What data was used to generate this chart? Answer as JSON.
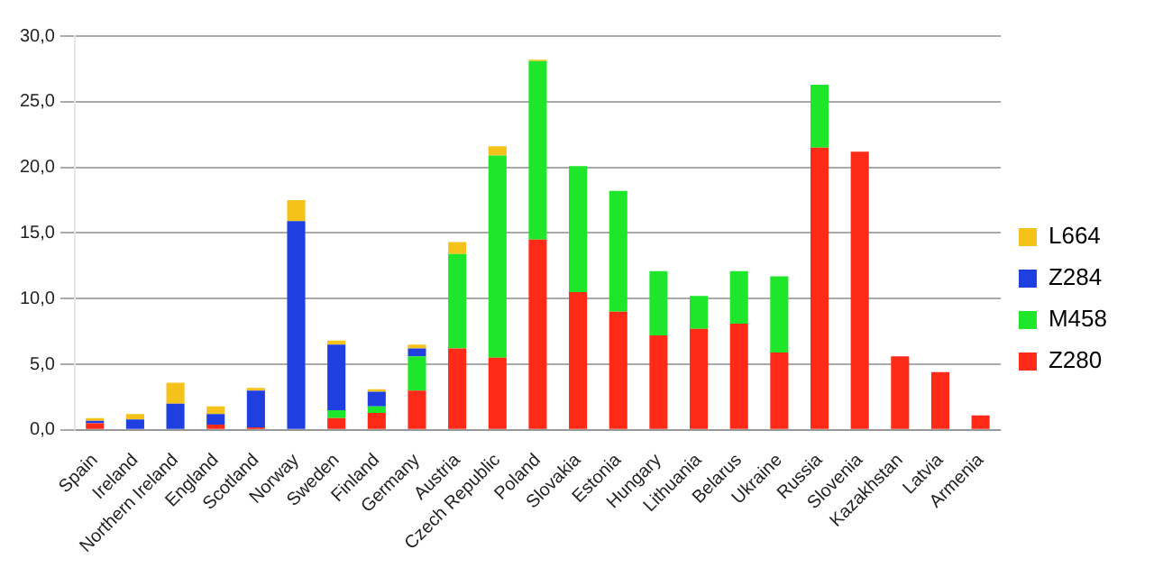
{
  "chart_data": {
    "type": "bar",
    "stacked": true,
    "legend": "right",
    "grid": "y",
    "categories": [
      "Spain",
      "Ireland",
      "Northern Ireland",
      "England",
      "Scotland",
      "Norway",
      "Sweden",
      "Finland",
      "Germany",
      "Austria",
      "Czech Republic",
      "Poland",
      "Slovakia",
      "Estonia",
      "Hungary",
      "Lithuania",
      "Belarus",
      "Ukraine",
      "Russia",
      "Slovenia",
      "Kazakhstan",
      "Latvia",
      "Armenia"
    ],
    "ylim": [
      0,
      30
    ],
    "yticks": [
      {
        "value": 0,
        "label": "0,0"
      },
      {
        "value": 5,
        "label": "5,0"
      },
      {
        "value": 10,
        "label": "10,0"
      },
      {
        "value": 15,
        "label": "15,0"
      },
      {
        "value": 20,
        "label": "20,0"
      },
      {
        "value": 25,
        "label": "25,0"
      },
      {
        "value": 30,
        "label": "30,0"
      }
    ],
    "series": [
      {
        "name": "Z280",
        "color": "#ff2a17",
        "values": [
          0.5,
          0,
          0,
          0.4,
          0.2,
          0,
          0.9,
          1.3,
          3.0,
          6.2,
          5.5,
          14.5,
          10.5,
          9.0,
          7.2,
          7.7,
          8.1,
          5.9,
          21.5,
          21.2,
          5.6,
          4.4,
          1.1
        ]
      },
      {
        "name": "M458",
        "color": "#1ee62a",
        "values": [
          0,
          0,
          0,
          0,
          0,
          0,
          0.6,
          0.5,
          2.6,
          7.2,
          15.4,
          13.6,
          9.6,
          9.2,
          4.9,
          2.5,
          4.0,
          5.8,
          4.8,
          0,
          0,
          0,
          0
        ]
      },
      {
        "name": "Z284",
        "color": "#1f3fe0",
        "values": [
          0.2,
          0.8,
          2.0,
          0.8,
          2.8,
          15.9,
          5.0,
          1.1,
          0.6,
          0,
          0,
          0,
          0,
          0,
          0,
          0,
          0,
          0,
          0,
          0,
          0,
          0,
          0
        ]
      },
      {
        "name": "L664",
        "color": "#f5c21b",
        "values": [
          0.2,
          0.4,
          1.6,
          0.6,
          0.2,
          1.6,
          0.3,
          0.2,
          0.3,
          0.9,
          0.7,
          0.1,
          0,
          0,
          0,
          0,
          0,
          0,
          0,
          0,
          0,
          0,
          0
        ]
      }
    ]
  }
}
